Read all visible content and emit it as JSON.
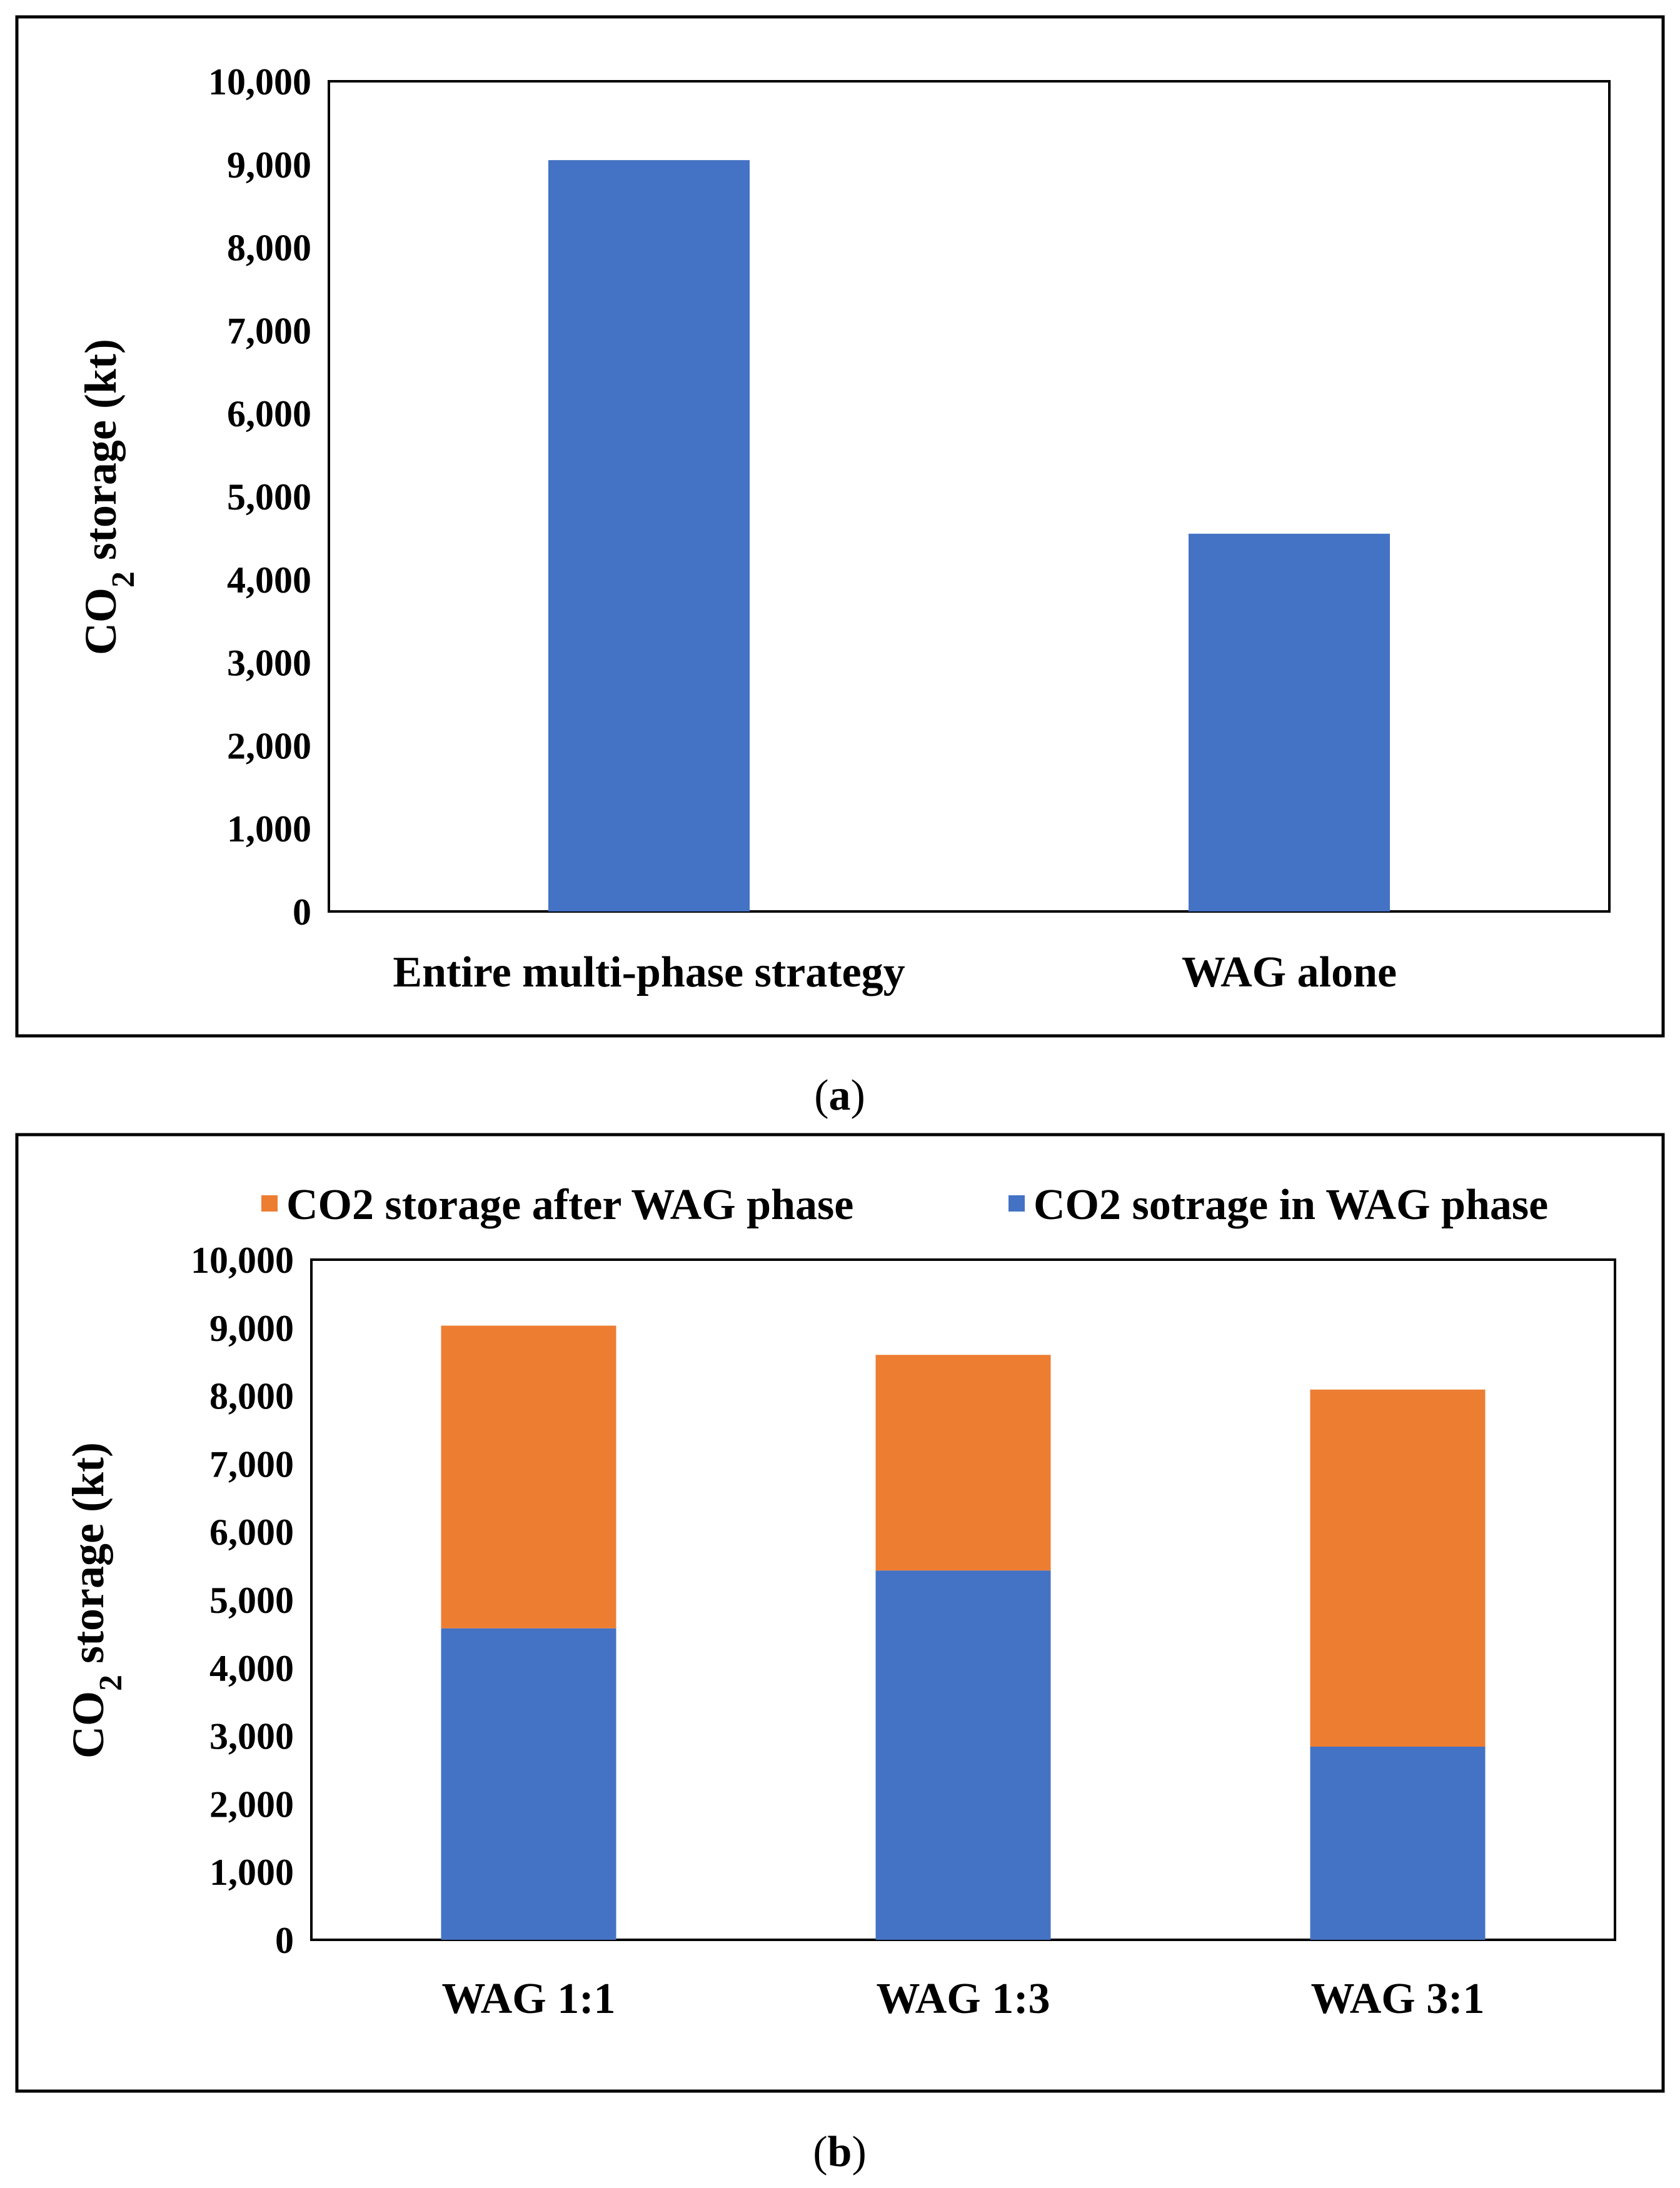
{
  "chart_data": [
    {
      "id": "a",
      "type": "bar",
      "caption_open": "(",
      "caption_letter": "a",
      "caption_close": ")",
      "ylabel_main": "CO",
      "ylabel_sub": "2",
      "ylabel_rest": " storage (kt)",
      "categories": [
        "Entire multi-phase strategy",
        "WAG alone"
      ],
      "values": [
        9050,
        4550
      ],
      "ylim": [
        0,
        10000
      ],
      "yticks": [
        0,
        1000,
        2000,
        3000,
        4000,
        5000,
        6000,
        7000,
        8000,
        9000,
        10000
      ],
      "ytick_labels": [
        "0",
        "1,000",
        "2,000",
        "3,000",
        "4,000",
        "5,000",
        "6,000",
        "7,000",
        "8,000",
        "9,000",
        "10,000"
      ],
      "bar_color": "#4472C4"
    },
    {
      "id": "b",
      "type": "bar",
      "stacked": true,
      "caption_open": "(",
      "caption_letter": "b",
      "caption_close": ")",
      "ylabel_main": "CO",
      "ylabel_sub": "2",
      "ylabel_rest": " storage (kt)",
      "categories": [
        "WAG 1:1",
        "WAG 1:3",
        "WAG 3:1"
      ],
      "series": [
        {
          "name": "CO2 sotrage in WAG phase",
          "color": "#4472C4",
          "values": [
            4580,
            5430,
            2840
          ]
        },
        {
          "name": "CO2 storage after WAG phase",
          "color": "#ED7D31",
          "values": [
            4450,
            3170,
            5250
          ]
        }
      ],
      "legend_order": [
        1,
        0
      ],
      "legend_position": "top",
      "ylim": [
        0,
        10000
      ],
      "yticks": [
        0,
        1000,
        2000,
        3000,
        4000,
        5000,
        6000,
        7000,
        8000,
        9000,
        10000
      ],
      "ytick_labels": [
        "0",
        "1,000",
        "2,000",
        "3,000",
        "4,000",
        "5,000",
        "6,000",
        "7,000",
        "8,000",
        "9,000",
        "10,000"
      ]
    }
  ]
}
